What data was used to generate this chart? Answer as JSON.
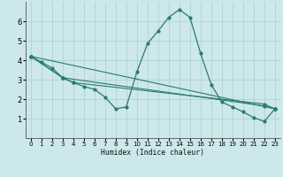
{
  "background_color": "#cce8eb",
  "grid_color": "#aacdd1",
  "line_color": "#2a7a72",
  "xlabel": "Humidex (Indice chaleur)",
  "xlim": [
    -0.5,
    23.5
  ],
  "ylim": [
    0,
    7
  ],
  "yticks": [
    1,
    2,
    3,
    4,
    5,
    6
  ],
  "xticks": [
    0,
    1,
    2,
    3,
    4,
    5,
    6,
    7,
    8,
    9,
    10,
    11,
    12,
    13,
    14,
    15,
    16,
    17,
    18,
    19,
    20,
    21,
    22,
    23
  ],
  "lines": [
    {
      "x": [
        0,
        1,
        2,
        3,
        4,
        5,
        6,
        7,
        8,
        9,
        10,
        11,
        12,
        13,
        14,
        15,
        16,
        17,
        18,
        19,
        20,
        21,
        22,
        23
      ],
      "y": [
        4.2,
        3.9,
        3.6,
        3.1,
        2.85,
        2.65,
        2.5,
        2.1,
        1.5,
        1.6,
        3.4,
        4.85,
        5.5,
        6.2,
        6.6,
        6.2,
        4.35,
        2.75,
        1.85,
        1.6,
        1.35,
        1.05,
        0.85,
        1.5
      ]
    },
    {
      "x": [
        0,
        23
      ],
      "y": [
        4.2,
        1.5
      ]
    },
    {
      "x": [
        0,
        3,
        22,
        23
      ],
      "y": [
        4.2,
        3.1,
        1.65,
        1.5
      ]
    },
    {
      "x": [
        0,
        3,
        4,
        22,
        23
      ],
      "y": [
        4.2,
        3.1,
        2.85,
        1.75,
        1.5
      ]
    }
  ]
}
